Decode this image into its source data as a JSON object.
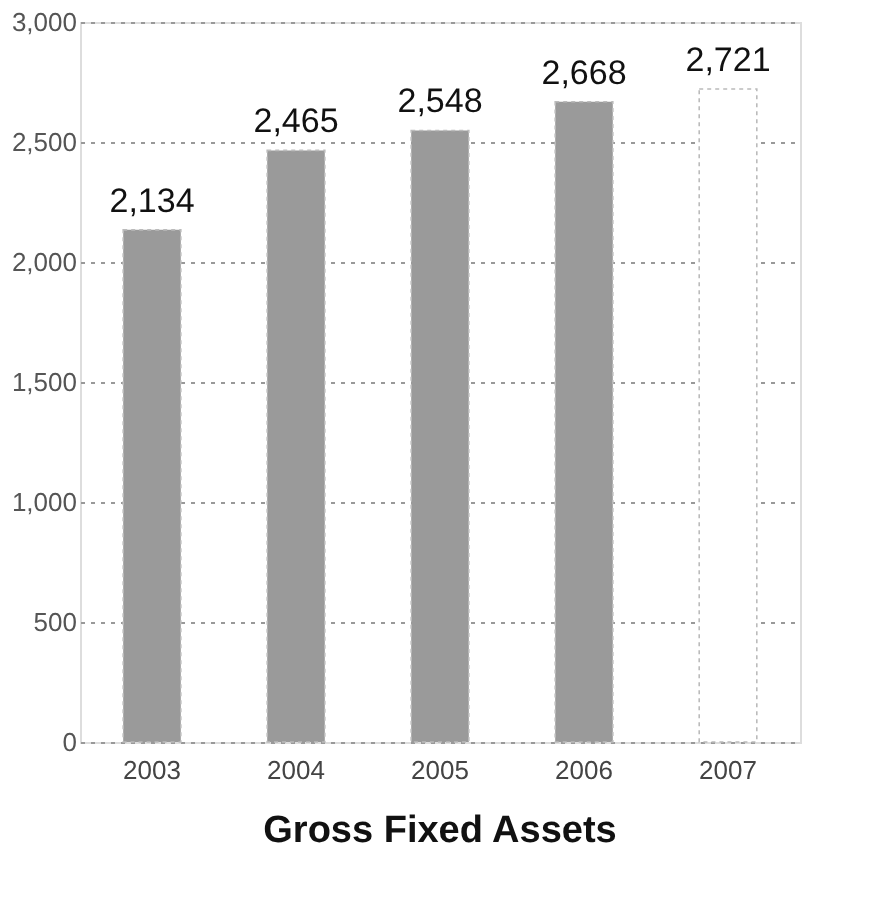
{
  "chart_data": {
    "type": "bar",
    "title": "Gross Fixed Assets",
    "categories": [
      "2003",
      "2004",
      "2005",
      "2006",
      "2007"
    ],
    "values": [
      2134,
      2465,
      2548,
      2668,
      2721
    ],
    "colors": [
      "#9a9a9a",
      "#9a9a9a",
      "#9a9a9a",
      "#9a9a9a",
      "#ffffff"
    ],
    "ylim": [
      0,
      3000
    ],
    "yticks": [
      {
        "value": 0,
        "label": "0"
      },
      {
        "value": 500,
        "label": "500"
      },
      {
        "value": 1000,
        "label": "1,000"
      },
      {
        "value": 1500,
        "label": "1,500"
      },
      {
        "value": 2000,
        "label": "2,000"
      },
      {
        "value": 2500,
        "label": "2,500"
      },
      {
        "value": 3000,
        "label": "3,000"
      }
    ],
    "value_labels": [
      "2,134",
      "2,465",
      "2,548",
      "2,668",
      "2,721"
    ],
    "grid": "y"
  }
}
